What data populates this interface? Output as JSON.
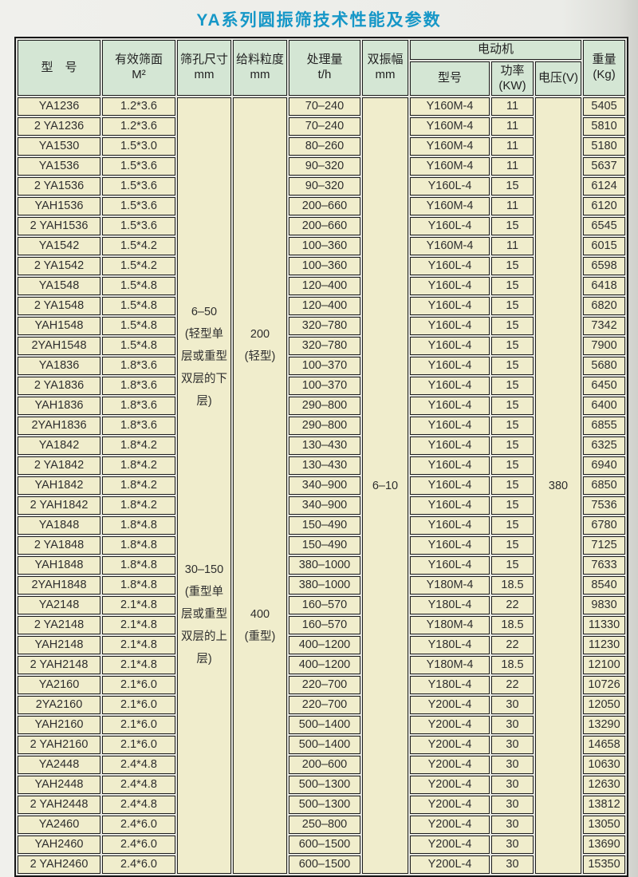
{
  "page": {
    "title": "YA系列圆振筛技术性能及参数"
  },
  "colors": {
    "title_color": "#1697c7",
    "header_bg": "#d4e6d4",
    "cell_bg": "#f0edcc",
    "border": "#1d1d1d"
  },
  "table": {
    "headers": {
      "model": "型　号",
      "area": "有效筛面\nM²",
      "sieve_hole": "筛孔尺寸\nmm",
      "feed_size": "给料粒度\nmm",
      "capacity": "处理量\nt/h",
      "amplitude": "双振幅\nmm",
      "motor_group": "电动机",
      "motor_model": "型号",
      "motor_power": "功率\n(KW)",
      "motor_voltage": "电压(V)",
      "weight": "重量\n(Kg)"
    },
    "merged": {
      "sieve_hole_light": "6–50\n(轻型单\n层或重型\n双层的下\n层)",
      "sieve_hole_heavy": "30–150\n(重型单\n层或重型\n双层的上\n层)",
      "feed_light": "200\n(轻型)",
      "feed_heavy": "400\n(重型)",
      "amplitude": "6–10",
      "voltage": "380"
    },
    "rows": [
      {
        "model": "YA1236",
        "area": "1.2*3.6",
        "capacity": "70–240",
        "motor_model": "Y160M-4",
        "power": "11",
        "weight": "5405"
      },
      {
        "model": "2 YA1236",
        "area": "1.2*3.6",
        "capacity": "70–240",
        "motor_model": "Y160M-4",
        "power": "11",
        "weight": "5810"
      },
      {
        "model": "YA1530",
        "area": "1.5*3.0",
        "capacity": "80–260",
        "motor_model": "Y160M-4",
        "power": "11",
        "weight": "5180"
      },
      {
        "model": "YA1536",
        "area": "1.5*3.6",
        "capacity": "90–320",
        "motor_model": "Y160M-4",
        "power": "11",
        "weight": "5637"
      },
      {
        "model": "2 YA1536",
        "area": "1.5*3.6",
        "capacity": "90–320",
        "motor_model": "Y160L-4",
        "power": "15",
        "weight": "6124"
      },
      {
        "model": "YAH1536",
        "area": "1.5*3.6",
        "capacity": "200–660",
        "motor_model": "Y160M-4",
        "power": "11",
        "weight": "6120"
      },
      {
        "model": "2 YAH1536",
        "area": "1.5*3.6",
        "capacity": "200–660",
        "motor_model": "Y160L-4",
        "power": "15",
        "weight": "6545"
      },
      {
        "model": "YA1542",
        "area": "1.5*4.2",
        "capacity": "100–360",
        "motor_model": "Y160M-4",
        "power": "11",
        "weight": "6015"
      },
      {
        "model": "2 YA1542",
        "area": "1.5*4.2",
        "capacity": "100–360",
        "motor_model": "Y160L-4",
        "power": "15",
        "weight": "6598"
      },
      {
        "model": "YA1548",
        "area": "1.5*4.8",
        "capacity": "120–400",
        "motor_model": "Y160L-4",
        "power": "15",
        "weight": "6418"
      },
      {
        "model": "2 YA1548",
        "area": "1.5*4.8",
        "capacity": "120–400",
        "motor_model": "Y160L-4",
        "power": "15",
        "weight": "6820"
      },
      {
        "model": "YAH1548",
        "area": "1.5*4.8",
        "capacity": "320–780",
        "motor_model": "Y160L-4",
        "power": "15",
        "weight": "7342"
      },
      {
        "model": "2YAH1548",
        "area": "1.5*4.8",
        "capacity": "320–780",
        "motor_model": "Y160L-4",
        "power": "15",
        "weight": "7900"
      },
      {
        "model": "YA1836",
        "area": "1.8*3.6",
        "capacity": "100–370",
        "motor_model": "Y160L-4",
        "power": "15",
        "weight": "5680"
      },
      {
        "model": "2 YA1836",
        "area": "1.8*3.6",
        "capacity": "100–370",
        "motor_model": "Y160L-4",
        "power": "15",
        "weight": "6450"
      },
      {
        "model": "YAH1836",
        "area": "1.8*3.6",
        "capacity": "290–800",
        "motor_model": "Y160L-4",
        "power": "15",
        "weight": "6400"
      },
      {
        "model": "2YAH1836",
        "area": "1.8*3.6",
        "capacity": "290–800",
        "motor_model": "Y160L-4",
        "power": "15",
        "weight": "6855"
      },
      {
        "model": "YA1842",
        "area": "1.8*4.2",
        "capacity": "130–430",
        "motor_model": "Y160L-4",
        "power": "15",
        "weight": "6325"
      },
      {
        "model": "2 YA1842",
        "area": "1.8*4.2",
        "capacity": "130–430",
        "motor_model": "Y160L-4",
        "power": "15",
        "weight": "6940"
      },
      {
        "model": "YAH1842",
        "area": "1.8*4.2",
        "capacity": "340–900",
        "motor_model": "Y160L-4",
        "power": "15",
        "weight": "6850"
      },
      {
        "model": "2 YAH1842",
        "area": "1.8*4.2",
        "capacity": "340–900",
        "motor_model": "Y160L-4",
        "power": "15",
        "weight": "7536"
      },
      {
        "model": "YA1848",
        "area": "1.8*4.8",
        "capacity": "150–490",
        "motor_model": "Y160L-4",
        "power": "15",
        "weight": "6780"
      },
      {
        "model": "2 YA1848",
        "area": "1.8*4.8",
        "capacity": "150–490",
        "motor_model": "Y160L-4",
        "power": "15",
        "weight": "7125"
      },
      {
        "model": "YAH1848",
        "area": "1.8*4.8",
        "capacity": "380–1000",
        "motor_model": "Y160L-4",
        "power": "15",
        "weight": "7633"
      },
      {
        "model": "2YAH1848",
        "area": "1.8*4.8",
        "capacity": "380–1000",
        "motor_model": "Y180M-4",
        "power": "18.5",
        "weight": "8540"
      },
      {
        "model": "YA2148",
        "area": "2.1*4.8",
        "capacity": "160–570",
        "motor_model": "Y180L-4",
        "power": "22",
        "weight": "9830"
      },
      {
        "model": "2 YA2148",
        "area": "2.1*4.8",
        "capacity": "160–570",
        "motor_model": "Y180M-4",
        "power": "18.5",
        "weight": "11330"
      },
      {
        "model": "YAH2148",
        "area": "2.1*4.8",
        "capacity": "400–1200",
        "motor_model": "Y180L-4",
        "power": "22",
        "weight": "11230"
      },
      {
        "model": "2 YAH2148",
        "area": "2.1*4.8",
        "capacity": "400–1200",
        "motor_model": "Y180M-4",
        "power": "18.5",
        "weight": "12100"
      },
      {
        "model": "YA2160",
        "area": "2.1*6.0",
        "capacity": "220–700",
        "motor_model": "Y180L-4",
        "power": "22",
        "weight": "10726"
      },
      {
        "model": "2YA2160",
        "area": "2.1*6.0",
        "capacity": "220–700",
        "motor_model": "Y200L-4",
        "power": "30",
        "weight": "12050"
      },
      {
        "model": "YAH2160",
        "area": "2.1*6.0",
        "capacity": "500–1400",
        "motor_model": "Y200L-4",
        "power": "30",
        "weight": "13290"
      },
      {
        "model": "2 YAH2160",
        "area": "2.1*6.0",
        "capacity": "500–1400",
        "motor_model": "Y200L-4",
        "power": "30",
        "weight": "14658"
      },
      {
        "model": "YA2448",
        "area": "2.4*4.8",
        "capacity": "200–600",
        "motor_model": "Y200L-4",
        "power": "30",
        "weight": "10630"
      },
      {
        "model": "YAH2448",
        "area": "2.4*4.8",
        "capacity": "500–1300",
        "motor_model": "Y200L-4",
        "power": "30",
        "weight": "12630"
      },
      {
        "model": "2 YAH2448",
        "area": "2.4*4.8",
        "capacity": "500–1300",
        "motor_model": "Y200L-4",
        "power": "30",
        "weight": "13812"
      },
      {
        "model": "YA2460",
        "area": "2.4*6.0",
        "capacity": "250–800",
        "motor_model": "Y200L-4",
        "power": "30",
        "weight": "13050"
      },
      {
        "model": "YAH2460",
        "area": "2.4*6.0",
        "capacity": "600–1500",
        "motor_model": "Y200L-4",
        "power": "30",
        "weight": "13690"
      },
      {
        "model": "2 YAH2460",
        "area": "2.4*6.0",
        "capacity": "600–1500",
        "motor_model": "Y200L-4",
        "power": "30",
        "weight": "15350"
      }
    ]
  }
}
